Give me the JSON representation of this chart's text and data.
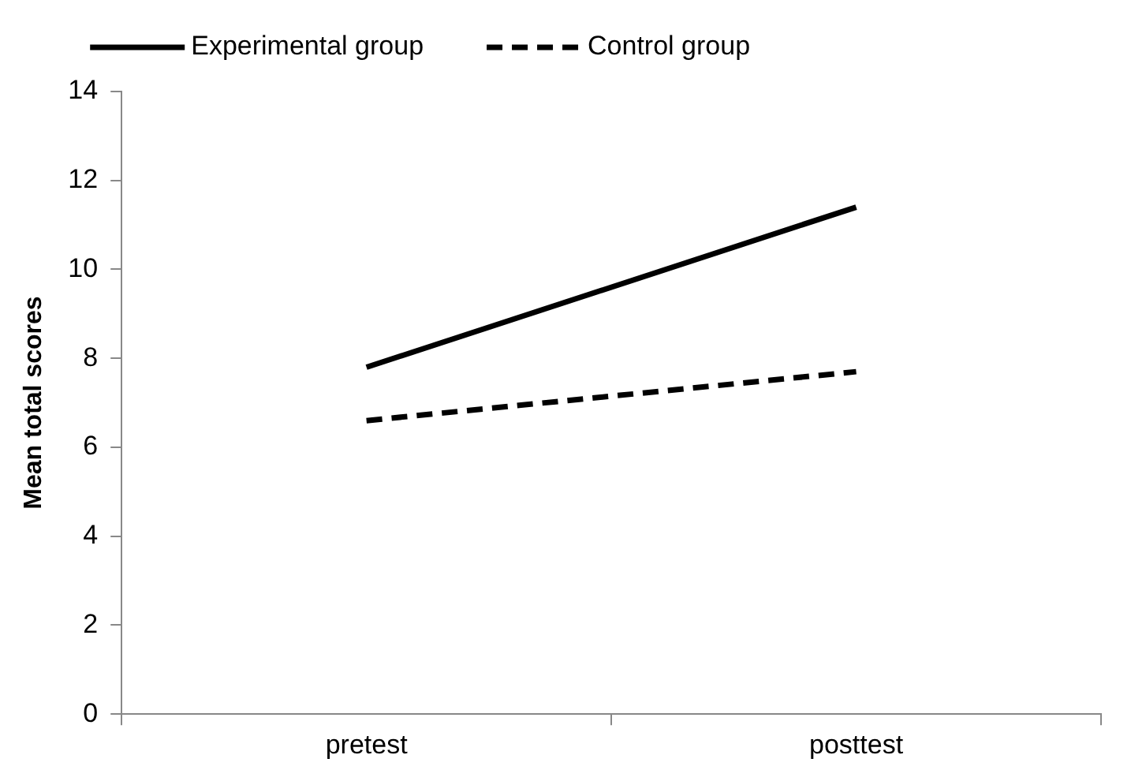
{
  "chart_data": {
    "type": "line",
    "ylabel": "Mean total scores",
    "categories": [
      "pretest",
      "posttest"
    ],
    "series": [
      {
        "name": "Experimental group",
        "color": "#000000",
        "line_style": "solid",
        "values": [
          7.8,
          11.4
        ]
      },
      {
        "name": "Control group",
        "color": "#000000",
        "line_style": "dashed",
        "values": [
          6.6,
          7.7
        ]
      }
    ],
    "ylim": [
      0,
      14
    ],
    "yticks": [
      0,
      2,
      4,
      6,
      8,
      10,
      12,
      14
    ],
    "legend": "top",
    "marker": "none"
  }
}
